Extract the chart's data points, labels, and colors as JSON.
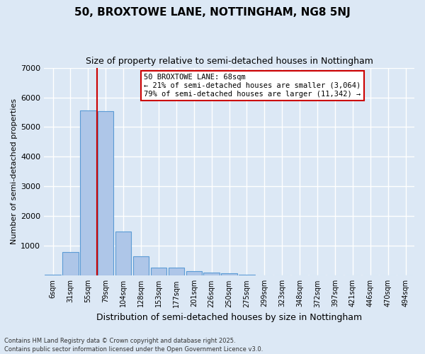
{
  "title": "50, BROXTOWE LANE, NOTTINGHAM, NG8 5NJ",
  "subtitle": "Size of property relative to semi-detached houses in Nottingham",
  "xlabel": "Distribution of semi-detached houses by size in Nottingham",
  "ylabel": "Number of semi-detached properties",
  "categories": [
    "6sqm",
    "31sqm",
    "55sqm",
    "79sqm",
    "104sqm",
    "128sqm",
    "153sqm",
    "177sqm",
    "201sqm",
    "226sqm",
    "250sqm",
    "275sqm",
    "299sqm",
    "323sqm",
    "348sqm",
    "372sqm",
    "397sqm",
    "421sqm",
    "446sqm",
    "470sqm",
    "494sqm"
  ],
  "values": [
    30,
    800,
    5560,
    5530,
    1480,
    650,
    270,
    265,
    150,
    100,
    80,
    30,
    15,
    5,
    3,
    2,
    1,
    1,
    0,
    0,
    0
  ],
  "bar_color": "#aec6e8",
  "bar_edge_color": "#5b9bd5",
  "bg_color": "#dce8f5",
  "grid_color": "#ffffff",
  "vline_x": 2.5,
  "vline_color": "#cc0000",
  "annotation_text": "50 BROXTOWE LANE: 68sqm\n← 21% of semi-detached houses are smaller (3,064)\n79% of semi-detached houses are larger (11,342) →",
  "annotation_box_color": "#cc0000",
  "ylim": [
    0,
    7000
  ],
  "yticks": [
    0,
    1000,
    2000,
    3000,
    4000,
    5000,
    6000,
    7000
  ],
  "footer1": "Contains HM Land Registry data © Crown copyright and database right 2025.",
  "footer2": "Contains public sector information licensed under the Open Government Licence v3.0."
}
